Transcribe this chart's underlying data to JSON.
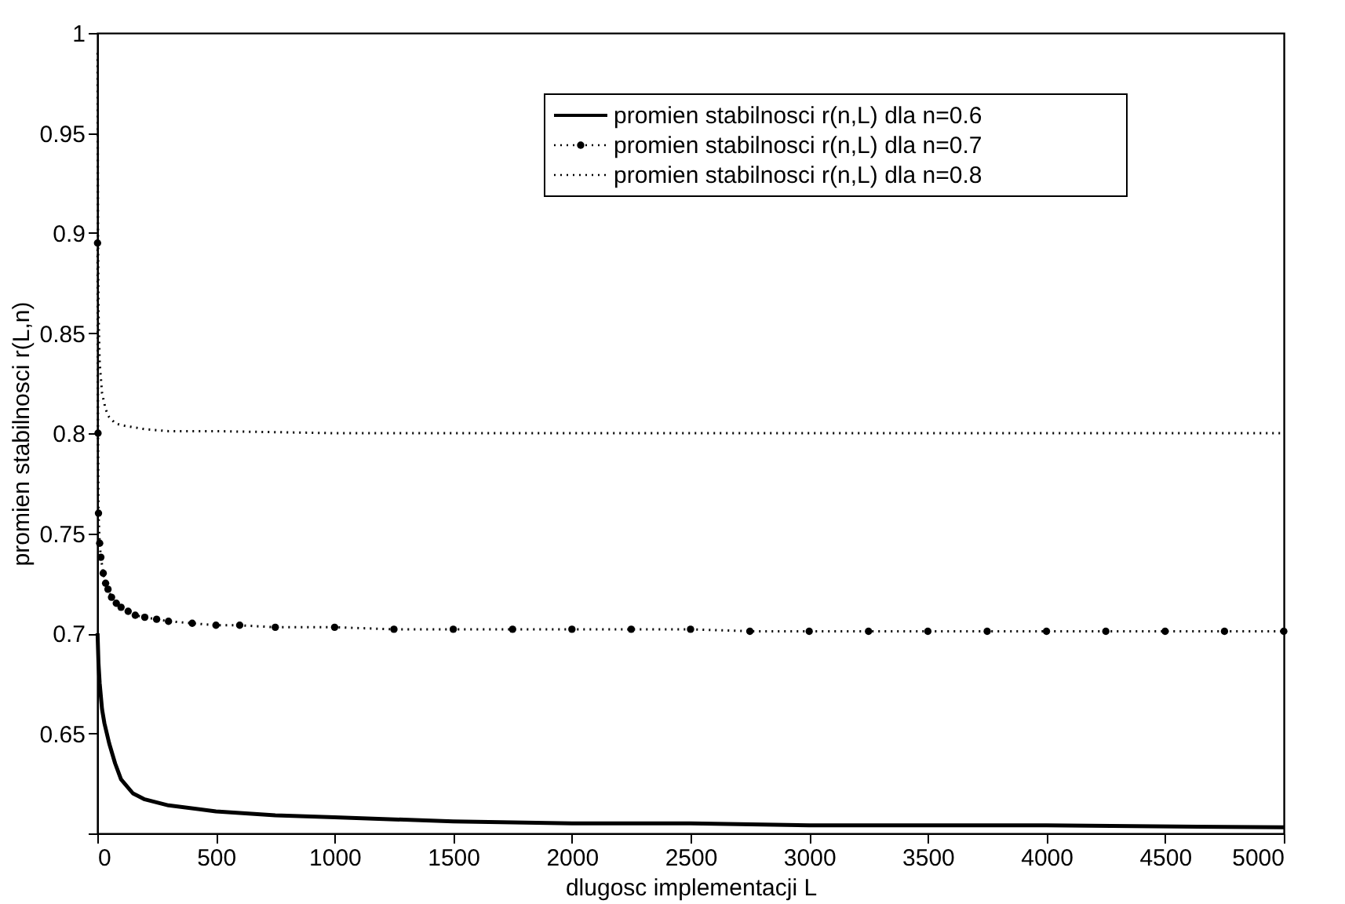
{
  "chart_data": {
    "type": "line",
    "xlabel": "dlugosc implementacji L",
    "ylabel": "promien stabilnosci r(L,n)",
    "xlim": [
      0,
      5000
    ],
    "xticks": [
      0,
      500,
      1000,
      1500,
      2000,
      2500,
      3000,
      3500,
      4000,
      4500,
      5000
    ],
    "ylim": [
      0.6,
      1
    ],
    "yticks": [
      {
        "value": 0.6,
        "label": null
      },
      0.65,
      0.7,
      0.75,
      0.8,
      0.85,
      0.9,
      0.95,
      1
    ],
    "grid": false,
    "legend": "top right",
    "series": [
      {
        "name": "promien stabilnosci r(n,L) dla n=0.6",
        "color": "#000000",
        "line_style": "solid",
        "marker": "none",
        "x": [
          1,
          5,
          10,
          20,
          30,
          50,
          75,
          100,
          150,
          200,
          300,
          500,
          750,
          1000,
          1500,
          2000,
          2500,
          3000,
          4000,
          5000
        ],
        "values": [
          0.7,
          0.685,
          0.675,
          0.662,
          0.655,
          0.645,
          0.635,
          0.627,
          0.62,
          0.617,
          0.614,
          0.611,
          0.609,
          0.608,
          0.606,
          0.605,
          0.605,
          0.604,
          0.604,
          0.603
        ]
      },
      {
        "name": "promien stabilnosci r(n,L) dla n=0.7",
        "color": "#000000",
        "line_style": "dotted",
        "marker": "circle",
        "x": [
          1,
          3,
          5,
          10,
          15,
          25,
          35,
          45,
          60,
          80,
          100,
          130,
          160,
          200,
          250,
          300,
          400,
          500,
          600,
          750,
          1000,
          1250,
          1500,
          1750,
          2000,
          2250,
          2500,
          2750,
          3000,
          3250,
          3500,
          3750,
          4000,
          4250,
          4500,
          4750,
          5000
        ],
        "values": [
          0.895,
          0.8,
          0.76,
          0.745,
          0.738,
          0.73,
          0.725,
          0.722,
          0.718,
          0.715,
          0.713,
          0.711,
          0.709,
          0.708,
          0.707,
          0.706,
          0.705,
          0.704,
          0.704,
          0.703,
          0.703,
          0.702,
          0.702,
          0.702,
          0.702,
          0.702,
          0.702,
          0.701,
          0.701,
          0.701,
          0.701,
          0.701,
          0.701,
          0.701,
          0.701,
          0.701,
          0.701
        ]
      },
      {
        "name": "promien stabilnosci r(n,L) dla n=0.8",
        "color": "#000000",
        "line_style": "dotted",
        "marker": "none",
        "x": [
          1,
          3,
          5,
          10,
          20,
          35,
          50,
          75,
          100,
          150,
          200,
          300,
          500,
          1000,
          2000,
          3000,
          4000,
          5000
        ],
        "values": [
          0.99,
          0.9,
          0.86,
          0.835,
          0.82,
          0.812,
          0.808,
          0.805,
          0.804,
          0.803,
          0.802,
          0.801,
          0.801,
          0.8,
          0.8,
          0.8,
          0.8,
          0.8
        ]
      }
    ]
  }
}
